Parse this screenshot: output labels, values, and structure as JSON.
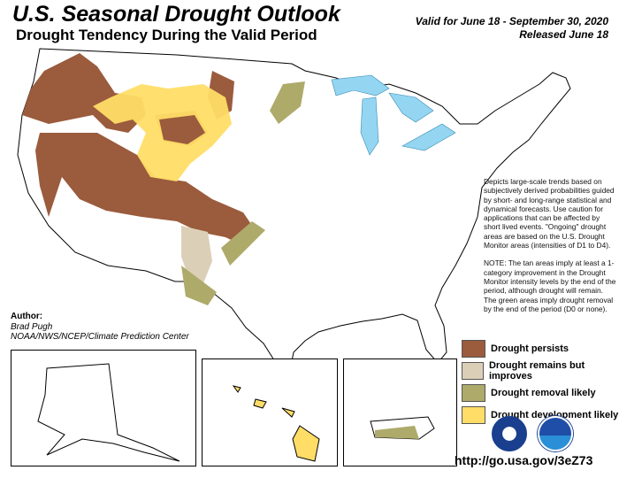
{
  "header": {
    "title": "U.S. Seasonal Drought Outlook",
    "subtitle": "Drought Tendency During the Valid Period",
    "valid": "Valid for June 18 - September 30, 2020",
    "released": "Released June 18"
  },
  "description": "Depicts large-scale trends based on subjectively derived probabilities guided by short- and long-range statistical and dynamical forecasts. Use caution for applications that can be affected by short lived events. \"Ongoing\" drought areas are based on the U.S. Drought Monitor areas (intensities of D1 to D4).",
  "note": "NOTE: The tan areas imply at least a 1-category improvement in the Drought Monitor intensity levels by the end of the period, although drought will remain. The green areas imply drought removal by the end of the period (D0 or none).",
  "author": {
    "label": "Author:",
    "name": "Brad Pugh",
    "org": "NOAA/NWS/NCEP/Climate Prediction Center"
  },
  "legend": [
    {
      "label": "Drought persists",
      "color": "#9b5b3d"
    },
    {
      "label": "Drought remains but improves",
      "color": "#dccfb8"
    },
    {
      "label": "Drought removal likely",
      "color": "#aeaa6a"
    },
    {
      "label": "Drought development likely",
      "color": "#ffdd66"
    }
  ],
  "colors": {
    "water": "#94d6f2",
    "border": "#000000"
  },
  "url": "http://go.usa.gov/3eZ73"
}
